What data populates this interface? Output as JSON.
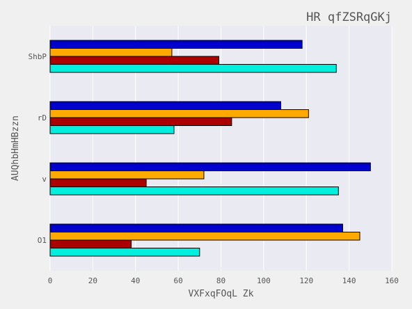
{
  "chart_data": {
    "type": "bar",
    "orientation": "horizontal",
    "title": "HR qfZSRqGKj",
    "xlabel": "VXFxqFOqL Zk",
    "ylabel": "AUQhbHmHBzzn",
    "categories": [
      "O1",
      "v",
      "rD",
      "ShbP"
    ],
    "xlim": [
      0,
      160
    ],
    "xticks": [
      0,
      20,
      40,
      60,
      80,
      100,
      120,
      140,
      160
    ],
    "grid": true,
    "legend": "none",
    "series": [
      {
        "color": "#00eedd",
        "values": [
          70,
          135,
          58,
          134
        ]
      },
      {
        "color": "#aa0000",
        "values": [
          38,
          45,
          85,
          79
        ]
      },
      {
        "color": "#ffaa00",
        "values": [
          145,
          72,
          121,
          57
        ]
      },
      {
        "color": "#0000cc",
        "values": [
          137,
          150,
          108,
          118
        ]
      }
    ],
    "colors": {
      "background": "#f0f0f0",
      "plot_background": "#eaeaf2",
      "grid": "#ffffff",
      "text": "#555555"
    }
  }
}
